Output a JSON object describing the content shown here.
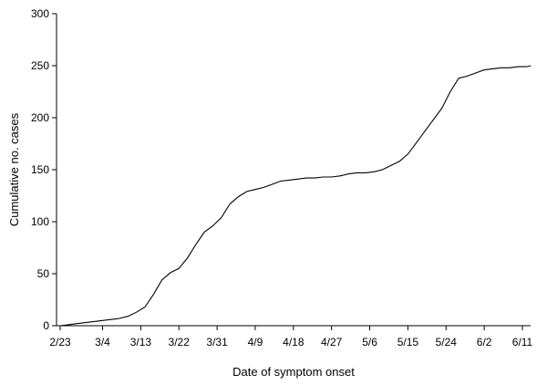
{
  "chart_data": {
    "type": "line",
    "title": "",
    "xlabel": "Date of symptom onset",
    "ylabel": "Cumulative no. cases",
    "ylim": [
      0,
      300
    ],
    "yticks": [
      0,
      50,
      100,
      150,
      200,
      250,
      300
    ],
    "xticks": [
      "2/23",
      "3/4",
      "3/13",
      "3/22",
      "3/31",
      "4/9",
      "4/18",
      "4/27",
      "5/6",
      "5/15",
      "5/24",
      "6/2",
      "6/11"
    ],
    "xlim": [
      "2/23",
      "6/14"
    ],
    "grid": false,
    "legend": "none",
    "series": [
      {
        "x": [
          "2/23",
          "2/25",
          "2/27",
          "2/29",
          "3/2",
          "3/4",
          "3/6",
          "3/8",
          "3/10",
          "3/12",
          "3/14",
          "3/16",
          "3/18",
          "3/20",
          "3/22",
          "3/24",
          "3/26",
          "3/28",
          "3/30",
          "4/1",
          "4/3",
          "4/5",
          "4/7",
          "4/9",
          "4/11",
          "4/13",
          "4/15",
          "4/17",
          "4/19",
          "4/21",
          "4/23",
          "4/25",
          "4/27",
          "4/29",
          "5/1",
          "5/3",
          "5/5",
          "5/7",
          "5/9",
          "5/11",
          "5/13",
          "5/15",
          "5/17",
          "5/19",
          "5/21",
          "5/23",
          "5/25",
          "5/27",
          "5/29",
          "5/31",
          "6/2",
          "6/4",
          "6/6",
          "6/8",
          "6/10",
          "6/12",
          "6/13"
        ],
        "y": [
          0,
          1,
          2,
          3,
          4,
          5,
          6,
          7,
          9,
          13,
          18,
          30,
          44,
          51,
          55,
          65,
          78,
          90,
          96,
          104,
          117,
          124,
          129,
          131,
          133,
          136,
          139,
          140,
          141,
          142,
          142,
          143,
          143,
          144,
          146,
          147,
          147,
          148,
          150,
          154,
          158,
          165,
          176,
          187,
          198,
          209,
          225,
          238,
          240,
          243,
          246,
          247,
          248,
          248,
          249,
          249,
          250
        ]
      }
    ]
  }
}
